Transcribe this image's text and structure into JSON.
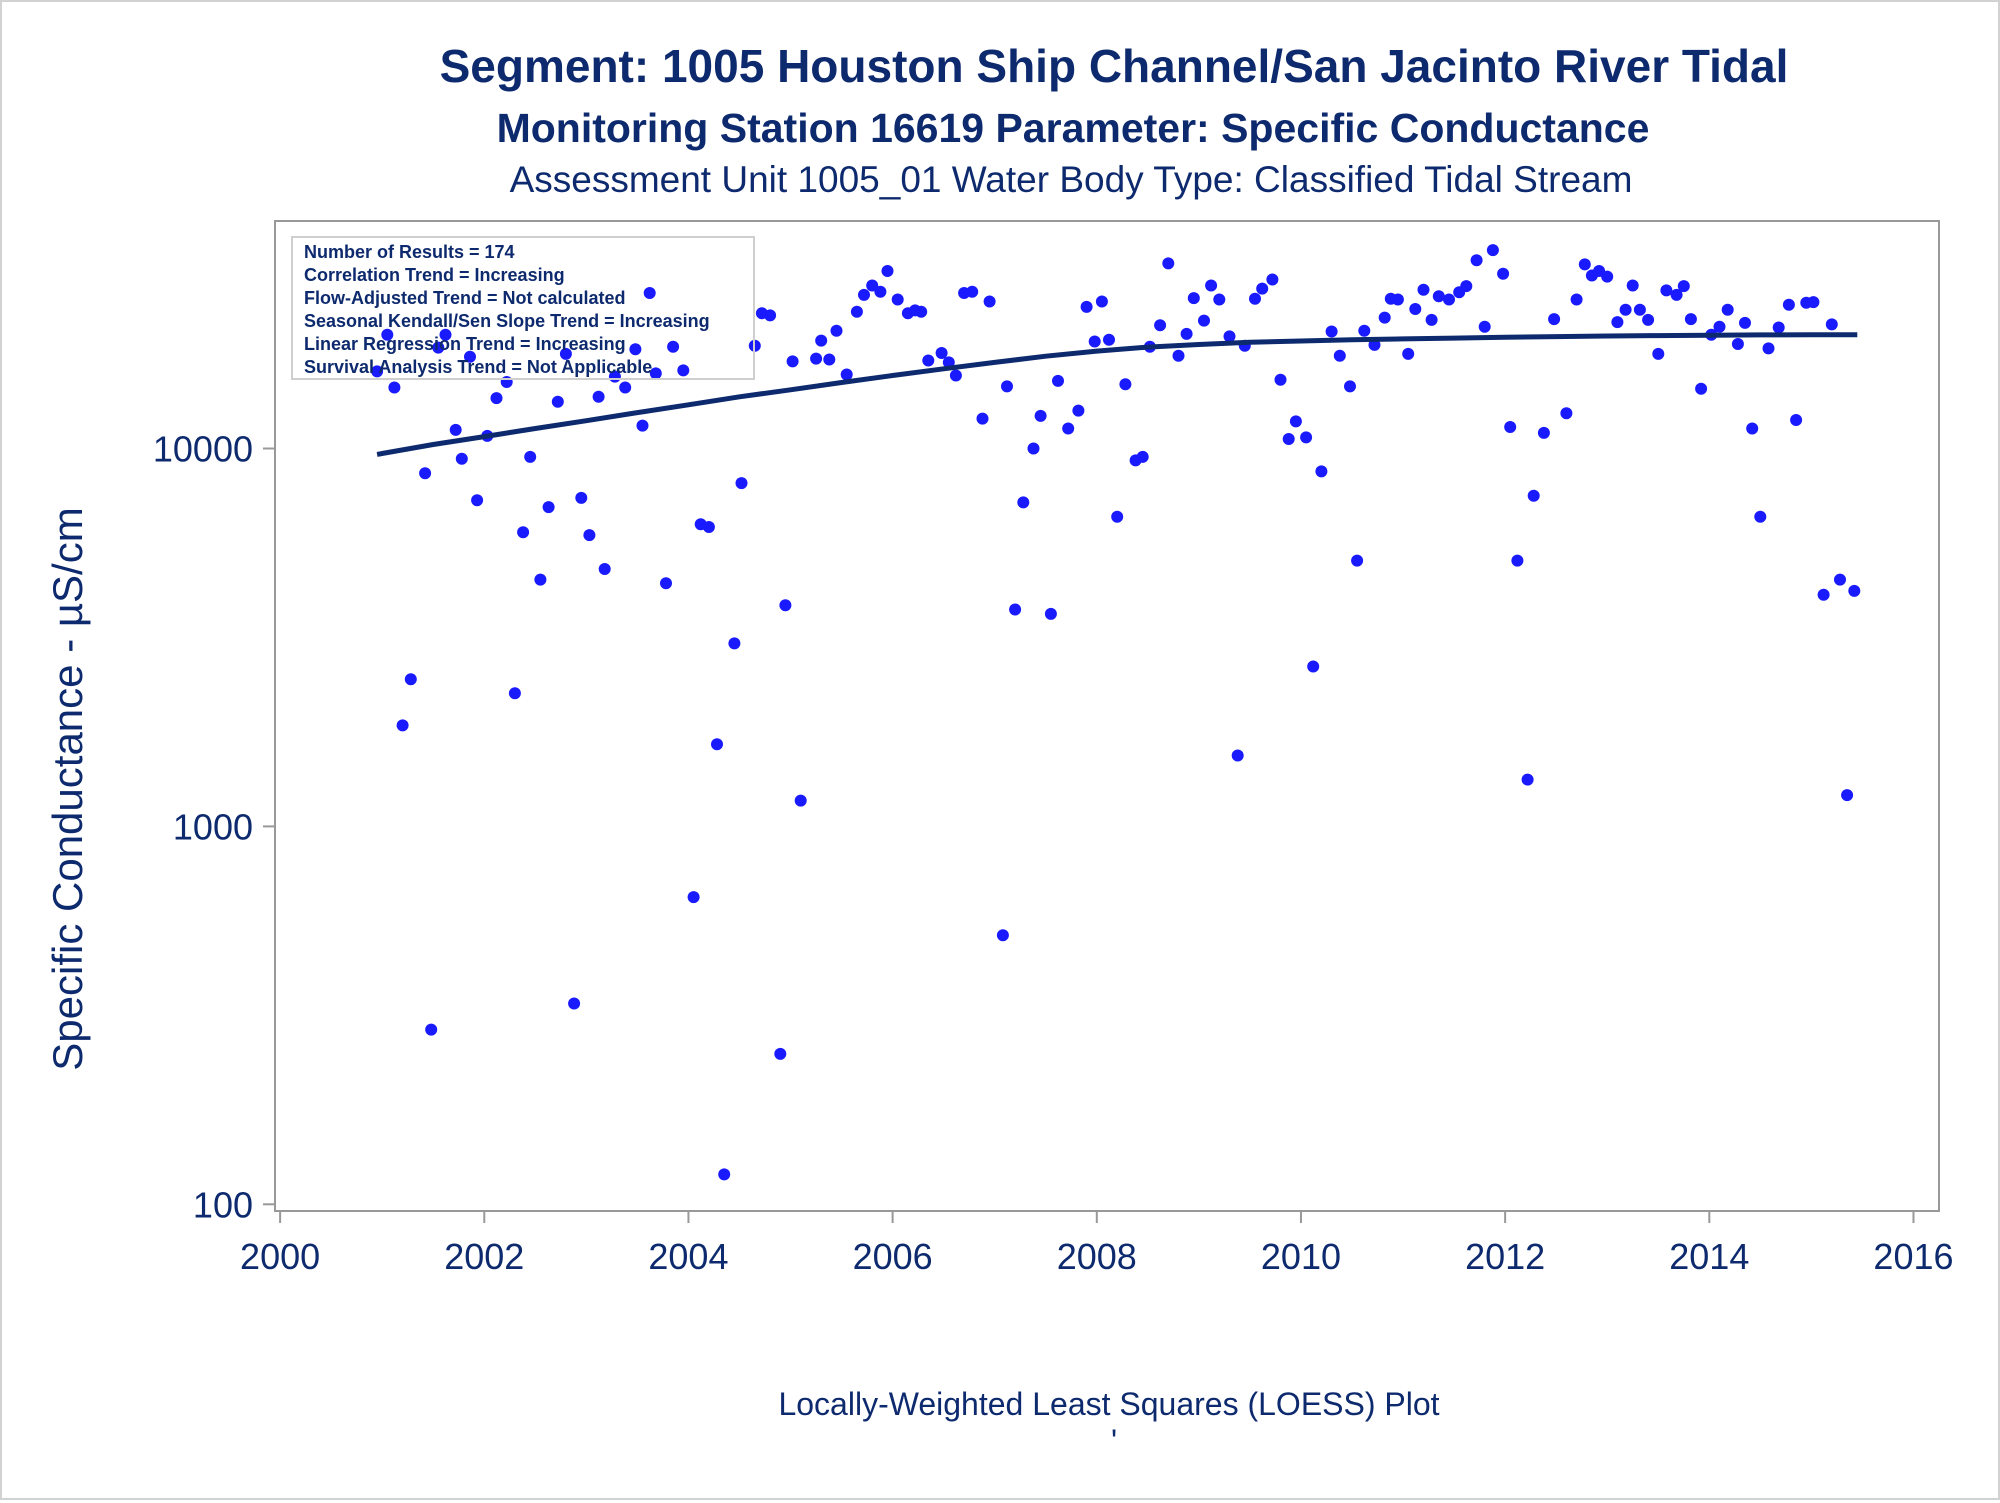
{
  "chart_data": {
    "type": "scatter",
    "title": "Segment: 1005  Houston Ship Channel/San Jacinto River Tidal",
    "subtitle": "Monitoring Station 16619 Parameter: Specific Conductance",
    "subtitle2": "Assessment Unit 1005_01   Water Body Type: Classified Tidal Stream",
    "ylabel": "Specific Conductance -  µS/cm",
    "xlabel": "",
    "footnote": "Locally-Weighted Least Squares (LOESS) Plot",
    "footnote_mark": "'",
    "y_scale": "log",
    "xlim": [
      1999.95,
      2016.25
    ],
    "ylim": [
      96,
      40000
    ],
    "x_ticks": [
      2000,
      2002,
      2004,
      2006,
      2008,
      2010,
      2012,
      2014,
      2016
    ],
    "y_ticks": [
      100,
      1000,
      10000
    ],
    "grid": false,
    "legend_position": "top-left",
    "stats_box": [
      "Number of Results = 174",
      "Correlation Trend = Increasing",
      "Flow-Adjusted Trend = Not calculated",
      "Seasonal Kendall/Sen Slope Trend = Increasing",
      "Linear Regression Trend = Increasing",
      "Survival Analysis Trend = Not Applicable"
    ],
    "colors": {
      "points": "#1a1aff",
      "loess": "#0e2a6e",
      "text": "#0e2a6e",
      "axis": "#999999"
    },
    "series": [
      {
        "kind": "points",
        "points": [
          [
            2000.95,
            16000
          ],
          [
            2001.05,
            20000
          ],
          [
            2001.12,
            14500
          ],
          [
            2001.2,
            1850
          ],
          [
            2001.28,
            2450
          ],
          [
            2001.42,
            8600
          ],
          [
            2001.48,
            290
          ],
          [
            2001.55,
            18500
          ],
          [
            2001.62,
            20000
          ],
          [
            2001.72,
            11200
          ],
          [
            2001.78,
            9400
          ],
          [
            2001.86,
            17500
          ],
          [
            2001.93,
            7300
          ],
          [
            2002.03,
            10800
          ],
          [
            2002.12,
            13600
          ],
          [
            2002.22,
            15000
          ],
          [
            2002.3,
            2250
          ],
          [
            2002.38,
            6000
          ],
          [
            2002.45,
            9500
          ],
          [
            2002.55,
            4500
          ],
          [
            2002.63,
            7000
          ],
          [
            2002.72,
            13300
          ],
          [
            2002.8,
            17800
          ],
          [
            2002.88,
            340
          ],
          [
            2002.95,
            7400
          ],
          [
            2003.03,
            5900
          ],
          [
            2003.12,
            13700
          ],
          [
            2003.18,
            4800
          ],
          [
            2003.28,
            15500
          ],
          [
            2003.38,
            14500
          ],
          [
            2003.48,
            18300
          ],
          [
            2003.55,
            11500
          ],
          [
            2003.62,
            25800
          ],
          [
            2003.68,
            15800
          ],
          [
            2003.78,
            4400
          ],
          [
            2003.85,
            18600
          ],
          [
            2003.95,
            16100
          ],
          [
            2004.05,
            650
          ],
          [
            2004.12,
            6300
          ],
          [
            2004.2,
            6200
          ],
          [
            2004.28,
            1650
          ],
          [
            2004.35,
            120
          ],
          [
            2004.45,
            3050
          ],
          [
            2004.52,
            8100
          ],
          [
            2004.65,
            18700
          ],
          [
            2004.72,
            22800
          ],
          [
            2004.8,
            22500
          ],
          [
            2004.9,
            250
          ],
          [
            2004.95,
            3850
          ],
          [
            2005.02,
            17000
          ],
          [
            2005.1,
            1170
          ],
          [
            2005.25,
            17300
          ],
          [
            2005.3,
            19300
          ],
          [
            2005.38,
            17200
          ],
          [
            2005.45,
            20500
          ],
          [
            2005.55,
            15700
          ],
          [
            2005.65,
            23000
          ],
          [
            2005.72,
            25500
          ],
          [
            2005.8,
            27000
          ],
          [
            2005.88,
            26000
          ],
          [
            2005.95,
            29500
          ],
          [
            2006.05,
            24800
          ],
          [
            2006.15,
            22800
          ],
          [
            2006.22,
            23200
          ],
          [
            2006.28,
            23000
          ],
          [
            2006.35,
            17100
          ],
          [
            2006.48,
            17900
          ],
          [
            2006.55,
            16900
          ],
          [
            2006.62,
            15600
          ],
          [
            2006.7,
            25800
          ],
          [
            2006.78,
            26000
          ],
          [
            2006.88,
            12000
          ],
          [
            2006.95,
            24500
          ],
          [
            2007.08,
            515
          ],
          [
            2007.12,
            14600
          ],
          [
            2007.2,
            3750
          ],
          [
            2007.28,
            7200
          ],
          [
            2007.38,
            10000
          ],
          [
            2007.45,
            12200
          ],
          [
            2007.55,
            3650
          ],
          [
            2007.62,
            15100
          ],
          [
            2007.72,
            11300
          ],
          [
            2007.82,
            12600
          ],
          [
            2007.9,
            23700
          ],
          [
            2008.05,
            24500
          ],
          [
            2007.98,
            19200
          ],
          [
            2008.12,
            19400
          ],
          [
            2008.2,
            6600
          ],
          [
            2008.28,
            14800
          ],
          [
            2008.38,
            9300
          ],
          [
            2008.45,
            9500
          ],
          [
            2008.52,
            18600
          ],
          [
            2008.62,
            21200
          ],
          [
            2008.7,
            30900
          ],
          [
            2008.8,
            17600
          ],
          [
            2008.88,
            20100
          ],
          [
            2008.95,
            25000
          ],
          [
            2009.05,
            21800
          ],
          [
            2009.12,
            27000
          ],
          [
            2009.2,
            24800
          ],
          [
            2009.3,
            19800
          ],
          [
            2009.38,
            1540
          ],
          [
            2009.45,
            18700
          ],
          [
            2009.55,
            24900
          ],
          [
            2009.62,
            26500
          ],
          [
            2009.72,
            28000
          ],
          [
            2009.8,
            15200
          ],
          [
            2009.88,
            10600
          ],
          [
            2009.95,
            11800
          ],
          [
            2010.05,
            10700
          ],
          [
            2010.12,
            2650
          ],
          [
            2010.2,
            8700
          ],
          [
            2010.3,
            20400
          ],
          [
            2010.38,
            17600
          ],
          [
            2010.48,
            14600
          ],
          [
            2010.55,
            5050
          ],
          [
            2010.62,
            20500
          ],
          [
            2010.72,
            18800
          ],
          [
            2010.82,
            22200
          ],
          [
            2010.88,
            24900
          ],
          [
            2010.95,
            24800
          ],
          [
            2011.05,
            17800
          ],
          [
            2011.12,
            23400
          ],
          [
            2011.2,
            26300
          ],
          [
            2011.28,
            21900
          ],
          [
            2011.35,
            25300
          ],
          [
            2011.45,
            24800
          ],
          [
            2011.55,
            25900
          ],
          [
            2011.62,
            26900
          ],
          [
            2011.72,
            31500
          ],
          [
            2011.8,
            21000
          ],
          [
            2011.88,
            33500
          ],
          [
            2011.98,
            29000
          ],
          [
            2012.05,
            11400
          ],
          [
            2012.12,
            5050
          ],
          [
            2012.22,
            1330
          ],
          [
            2012.28,
            7500
          ],
          [
            2012.38,
            11000
          ],
          [
            2012.48,
            22000
          ],
          [
            2012.6,
            12400
          ],
          [
            2012.7,
            24800
          ],
          [
            2012.78,
            30700
          ],
          [
            2012.85,
            28700
          ],
          [
            2012.92,
            29500
          ],
          [
            2013.0,
            28500
          ],
          [
            2013.1,
            21600
          ],
          [
            2013.18,
            23300
          ],
          [
            2013.25,
            27000
          ],
          [
            2013.32,
            23300
          ],
          [
            2013.4,
            21900
          ],
          [
            2013.5,
            17800
          ],
          [
            2013.58,
            26200
          ],
          [
            2013.68,
            25500
          ],
          [
            2013.75,
            26900
          ],
          [
            2013.82,
            22000
          ],
          [
            2013.92,
            14400
          ],
          [
            2014.02,
            20000
          ],
          [
            2014.1,
            21000
          ],
          [
            2014.18,
            23300
          ],
          [
            2014.28,
            18900
          ],
          [
            2014.35,
            21500
          ],
          [
            2014.42,
            11300
          ],
          [
            2014.5,
            6600
          ],
          [
            2014.58,
            18400
          ],
          [
            2014.68,
            20900
          ],
          [
            2014.78,
            24000
          ],
          [
            2014.85,
            11900
          ],
          [
            2014.95,
            24300
          ],
          [
            2015.02,
            24400
          ],
          [
            2015.12,
            4100
          ],
          [
            2015.2,
            21300
          ],
          [
            2015.28,
            4500
          ],
          [
            2015.35,
            1210
          ],
          [
            2015.42,
            4200
          ]
        ]
      },
      {
        "kind": "loess_line",
        "points": [
          [
            2000.95,
            9650
          ],
          [
            2001.5,
            10250
          ],
          [
            2002.0,
            10750
          ],
          [
            2002.5,
            11300
          ],
          [
            2003.0,
            11850
          ],
          [
            2003.5,
            12450
          ],
          [
            2004.0,
            13050
          ],
          [
            2004.5,
            13700
          ],
          [
            2005.0,
            14300
          ],
          [
            2005.5,
            14950
          ],
          [
            2006.0,
            15600
          ],
          [
            2006.5,
            16250
          ],
          [
            2007.0,
            16900
          ],
          [
            2007.5,
            17550
          ],
          [
            2008.0,
            18100
          ],
          [
            2008.5,
            18550
          ],
          [
            2009.0,
            18850
          ],
          [
            2009.5,
            19100
          ],
          [
            2010.0,
            19250
          ],
          [
            2010.5,
            19400
          ],
          [
            2011.0,
            19500
          ],
          [
            2011.5,
            19600
          ],
          [
            2012.0,
            19700
          ],
          [
            2012.5,
            19780
          ],
          [
            2013.0,
            19850
          ],
          [
            2013.5,
            19900
          ],
          [
            2014.0,
            19950
          ],
          [
            2014.5,
            19980
          ],
          [
            2015.0,
            20000
          ],
          [
            2015.45,
            20000
          ]
        ]
      }
    ]
  }
}
